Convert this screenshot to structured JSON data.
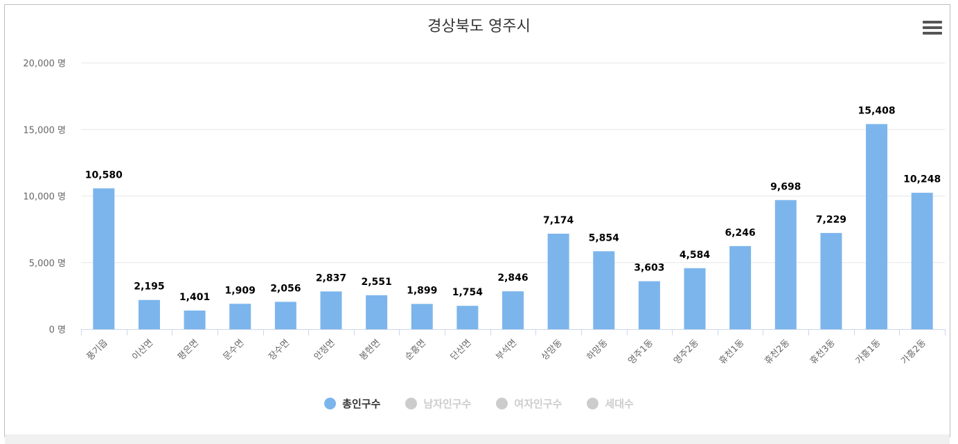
{
  "chart_data": {
    "type": "bar",
    "title": "경상북도 영주시",
    "categories": [
      "풍기읍",
      "이산면",
      "평은면",
      "문수면",
      "장수면",
      "안정면",
      "봉현면",
      "순흥면",
      "단산면",
      "부석면",
      "상망동",
      "하망동",
      "영주1동",
      "영주2동",
      "휴천1동",
      "휴천2동",
      "휴천3동",
      "가흥1동",
      "가흥2동"
    ],
    "series": [
      {
        "name": "총인구수",
        "values": [
          10580,
          2195,
          1401,
          1909,
          2056,
          2837,
          2551,
          1899,
          1754,
          2846,
          7174,
          5854,
          3603,
          4584,
          6246,
          9698,
          7229,
          15408,
          10248
        ],
        "color": "#7cb5ec",
        "visible": true
      },
      {
        "name": "남자인구수",
        "color": "#cccccc",
        "visible": false
      },
      {
        "name": "여자인구수",
        "color": "#cccccc",
        "visible": false
      },
      {
        "name": "세대수",
        "color": "#cccccc",
        "visible": false
      }
    ],
    "data_labels": [
      "10,580",
      "2,195",
      "1,401",
      "1,909",
      "2,056",
      "2,837",
      "2,551",
      "1,899",
      "1,754",
      "2,846",
      "7,174",
      "5,854",
      "3,603",
      "4,584",
      "6,246",
      "9,698",
      "7,229",
      "15,408",
      "10,248"
    ],
    "ylim": [
      0,
      20000
    ],
    "y_ticks": [
      0,
      5000,
      10000,
      15000,
      20000
    ],
    "y_tick_labels": [
      "0 명",
      "5,000 명",
      "10,000 명",
      "15,000 명",
      "20,000 명"
    ],
    "grid": true,
    "legend_position": "bottom-center",
    "colors": {
      "bar": "#7cb5ec",
      "grid": "#e6e6e6",
      "axis": "#ccd6eb",
      "label": "#666666",
      "data_label": "#000000",
      "legend_active": "#333333",
      "legend_inactive": "#cccccc"
    }
  }
}
